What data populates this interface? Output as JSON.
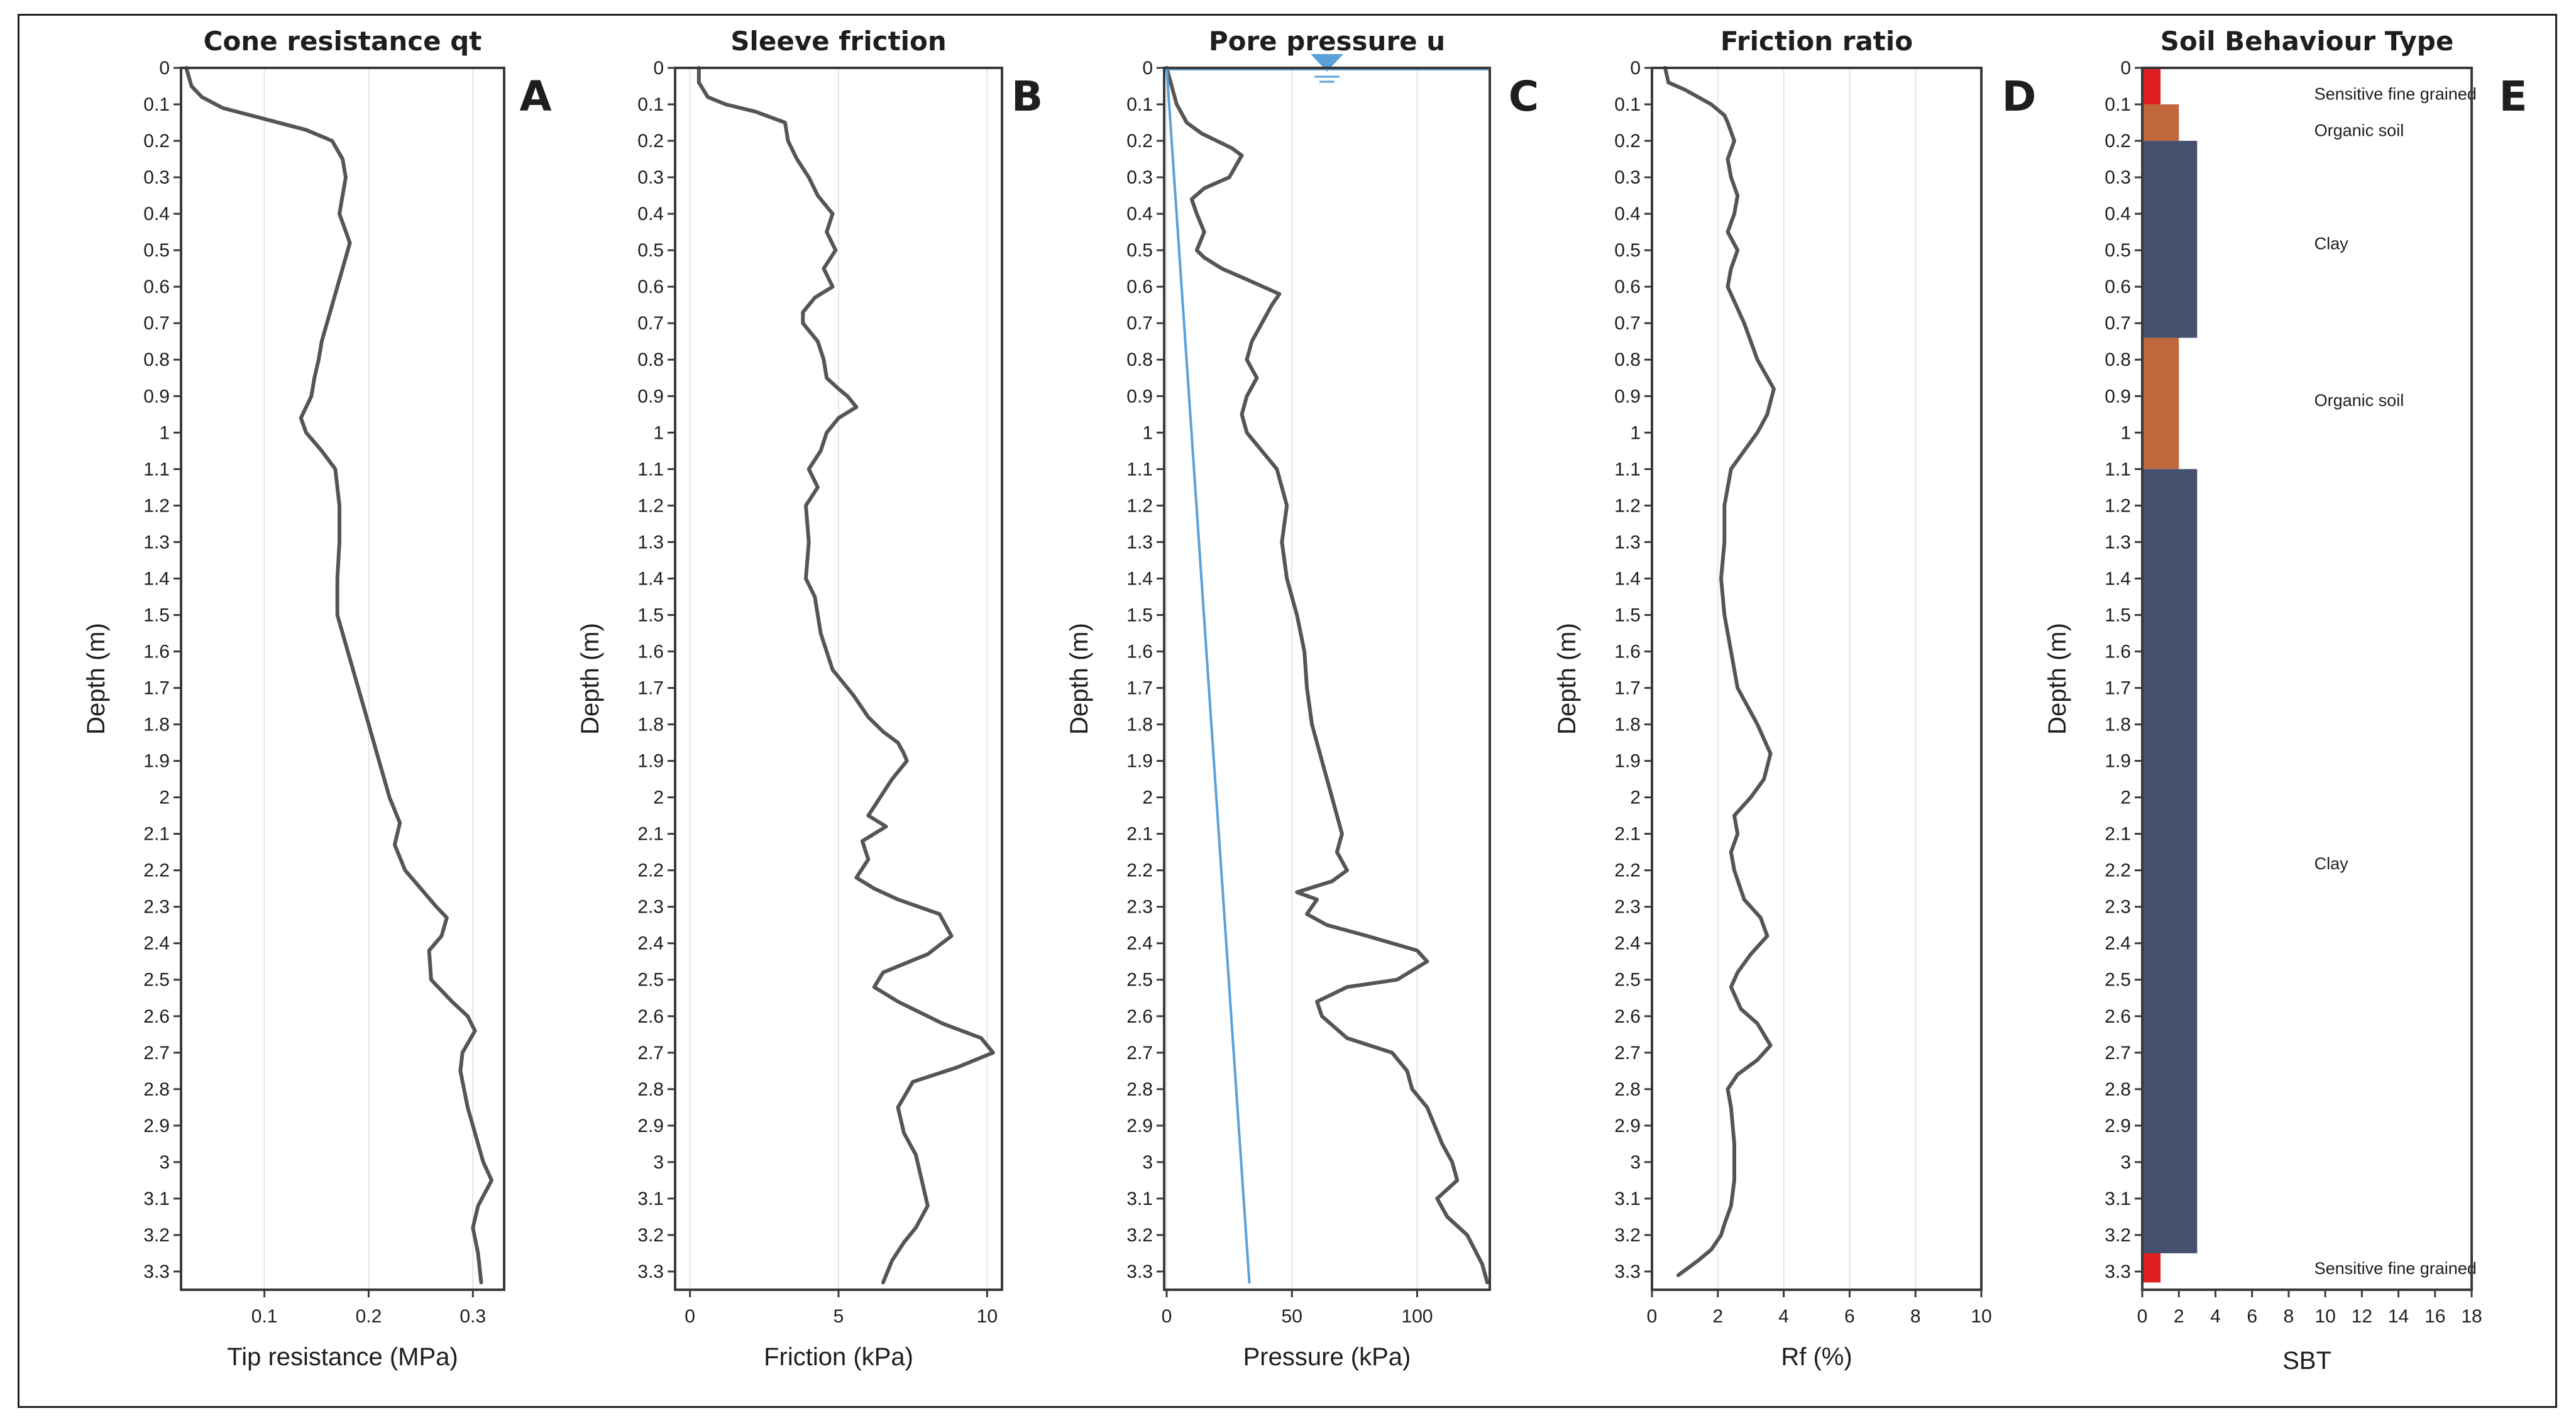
{
  "chart_data": [
    {
      "id": "A",
      "type": "line",
      "title": "Cone resistance qt",
      "xlabel": "Tip resistance (MPa)",
      "ylabel": "Depth (m)",
      "xlim": [
        0.02,
        0.33
      ],
      "ylim": [
        0,
        3.35
      ],
      "xticks": [
        0.1,
        0.2,
        0.3
      ],
      "xtick_labels": [
        "0.1",
        "0.2",
        "0.3"
      ],
      "yticks": [
        0,
        0.1,
        0.2,
        0.3,
        0.4,
        0.5,
        0.6,
        0.7,
        0.8,
        0.9,
        1,
        1.1,
        1.2,
        1.3,
        1.4,
        1.5,
        1.6,
        1.7,
        1.8,
        1.9,
        2,
        2.1,
        2.2,
        2.3,
        2.4,
        2.5,
        2.6,
        2.7,
        2.8,
        2.9,
        3,
        3.1,
        3.2,
        3.3
      ],
      "ytick_labels": [
        "0",
        "0.1",
        "0.2",
        "0.3",
        "0.4",
        "0.5",
        "0.6",
        "0.7",
        "0.8",
        "0.9",
        "1",
        "1.1",
        "1.2",
        "1.3",
        "1.4",
        "1.5",
        "1.6",
        "1.7",
        "1.8",
        "1.9",
        "2",
        "2.1",
        "2.2",
        "2.3",
        "2.4",
        "2.5",
        "2.6",
        "2.7",
        "2.8",
        "2.9",
        "3",
        "3.1",
        "3.2",
        "3.3"
      ],
      "grid": true,
      "series": [
        {
          "name": "qt",
          "color": "#555555",
          "x": [
            0.025,
            0.03,
            0.04,
            0.06,
            0.1,
            0.14,
            0.165,
            0.175,
            0.178,
            0.172,
            0.182,
            0.175,
            0.17,
            0.165,
            0.16,
            0.155,
            0.152,
            0.148,
            0.145,
            0.14,
            0.135,
            0.14,
            0.155,
            0.168,
            0.172,
            0.172,
            0.17,
            0.17,
            0.17,
            0.175,
            0.18,
            0.19,
            0.2,
            0.21,
            0.22,
            0.23,
            0.225,
            0.235,
            0.25,
            0.265,
            0.275,
            0.27,
            0.258,
            0.26,
            0.28,
            0.295,
            0.302,
            0.29,
            0.288,
            0.295,
            0.3,
            0.305,
            0.31,
            0.318,
            0.305,
            0.3,
            0.305,
            0.308
          ],
          "y": [
            0,
            0.05,
            0.08,
            0.11,
            0.14,
            0.17,
            0.2,
            0.25,
            0.3,
            0.4,
            0.48,
            0.55,
            0.6,
            0.65,
            0.7,
            0.75,
            0.8,
            0.85,
            0.9,
            0.93,
            0.96,
            1.0,
            1.05,
            1.1,
            1.2,
            1.3,
            1.4,
            1.45,
            1.5,
            1.55,
            1.6,
            1.7,
            1.8,
            1.9,
            2.0,
            2.07,
            2.13,
            2.2,
            2.25,
            2.3,
            2.33,
            2.38,
            2.42,
            2.5,
            2.56,
            2.6,
            2.64,
            2.7,
            2.75,
            2.85,
            2.9,
            2.95,
            3.0,
            3.05,
            3.12,
            3.18,
            3.25,
            3.33
          ]
        }
      ]
    },
    {
      "id": "B",
      "type": "line",
      "title": "Sleeve friction",
      "xlabel": "Friction (kPa)",
      "ylabel": "Depth (m)",
      "xlim": [
        -0.5,
        10.5
      ],
      "ylim": [
        0,
        3.35
      ],
      "xticks": [
        0,
        5,
        10
      ],
      "xtick_labels": [
        "0",
        "5",
        "10"
      ],
      "yticks": [
        0,
        0.1,
        0.2,
        0.3,
        0.4,
        0.5,
        0.6,
        0.7,
        0.8,
        0.9,
        1,
        1.1,
        1.2,
        1.3,
        1.4,
        1.5,
        1.6,
        1.7,
        1.8,
        1.9,
        2,
        2.1,
        2.2,
        2.3,
        2.4,
        2.5,
        2.6,
        2.7,
        2.8,
        2.9,
        3,
        3.1,
        3.2,
        3.3
      ],
      "ytick_labels": [
        "0",
        "0.1",
        "0.2",
        "0.3",
        "0.4",
        "0.5",
        "0.6",
        "0.7",
        "0.8",
        "0.9",
        "1",
        "1.1",
        "1.2",
        "1.3",
        "1.4",
        "1.5",
        "1.6",
        "1.7",
        "1.8",
        "1.9",
        "2",
        "2.1",
        "2.2",
        "2.3",
        "2.4",
        "2.5",
        "2.6",
        "2.7",
        "2.8",
        "2.9",
        "3",
        "3.1",
        "3.2",
        "3.3"
      ],
      "grid": true,
      "series": [
        {
          "name": "fs",
          "color": "#555555",
          "x": [
            0.3,
            0.3,
            0.6,
            1.2,
            2.2,
            3.2,
            3.3,
            3.6,
            4.0,
            4.3,
            4.8,
            4.6,
            4.9,
            4.5,
            4.8,
            4.2,
            3.8,
            3.8,
            4.3,
            4.5,
            4.6,
            5.0,
            5.3,
            5.6,
            5.0,
            4.6,
            4.4,
            4.0,
            4.3,
            3.9,
            4.0,
            3.9,
            4.2,
            4.4,
            4.8,
            5.5,
            6.0,
            6.5,
            7.0,
            7.2,
            7.3,
            6.8,
            6.0,
            6.6,
            5.8,
            6.0,
            5.6,
            6.2,
            7.0,
            8.4,
            8.8,
            8.0,
            6.5,
            6.2,
            7.0,
            8.5,
            9.8,
            10.2,
            9.0,
            7.5,
            7.0,
            7.2,
            7.6,
            7.8,
            8.0,
            7.6,
            7.2,
            6.8,
            6.5
          ],
          "y": [
            0,
            0.04,
            0.08,
            0.1,
            0.12,
            0.15,
            0.2,
            0.25,
            0.3,
            0.35,
            0.4,
            0.45,
            0.5,
            0.55,
            0.6,
            0.63,
            0.67,
            0.7,
            0.75,
            0.8,
            0.85,
            0.88,
            0.9,
            0.93,
            0.96,
            1.0,
            1.05,
            1.1,
            1.15,
            1.2,
            1.3,
            1.4,
            1.45,
            1.55,
            1.65,
            1.72,
            1.78,
            1.82,
            1.85,
            1.88,
            1.9,
            1.95,
            2.05,
            2.08,
            2.12,
            2.17,
            2.22,
            2.25,
            2.28,
            2.32,
            2.38,
            2.43,
            2.48,
            2.52,
            2.56,
            2.62,
            2.66,
            2.7,
            2.74,
            2.78,
            2.85,
            2.92,
            2.98,
            3.05,
            3.12,
            3.18,
            3.22,
            3.27,
            3.33
          ]
        }
      ]
    },
    {
      "id": "C",
      "type": "line",
      "title": "Pore pressure u",
      "xlabel": "Pressure (kPa)",
      "ylabel": "Depth (m)",
      "xlim": [
        -1,
        129
      ],
      "ylim": [
        0,
        3.35
      ],
      "xticks": [
        0,
        50,
        100
      ],
      "xtick_labels": [
        "0",
        "50",
        "100"
      ],
      "yticks": [
        0,
        0.1,
        0.2,
        0.3,
        0.4,
        0.5,
        0.6,
        0.7,
        0.8,
        0.9,
        1,
        1.1,
        1.2,
        1.3,
        1.4,
        1.5,
        1.6,
        1.7,
        1.8,
        1.9,
        2,
        2.1,
        2.2,
        2.3,
        2.4,
        2.5,
        2.6,
        2.7,
        2.8,
        2.9,
        3,
        3.1,
        3.2,
        3.3
      ],
      "ytick_labels": [
        "0",
        "0.1",
        "0.2",
        "0.3",
        "0.4",
        "0.5",
        "0.6",
        "0.7",
        "0.8",
        "0.9",
        "1",
        "1.1",
        "1.2",
        "1.3",
        "1.4",
        "1.5",
        "1.6",
        "1.7",
        "1.8",
        "1.9",
        "2",
        "2.1",
        "2.2",
        "2.3",
        "2.4",
        "2.5",
        "2.6",
        "2.7",
        "2.8",
        "2.9",
        "3",
        "3.1",
        "3.2",
        "3.3"
      ],
      "grid": true,
      "water_table": {
        "x": 64,
        "y": 0
      },
      "series": [
        {
          "name": "u2",
          "color": "#555555",
          "x": [
            0,
            2,
            4,
            8,
            14,
            20,
            26,
            30,
            25,
            15,
            10,
            12,
            15,
            12,
            15,
            22,
            32,
            45,
            42,
            38,
            34,
            32,
            36,
            32,
            30,
            32,
            38,
            44,
            46,
            48,
            46,
            48,
            52,
            55,
            56,
            58,
            62,
            66,
            68,
            70,
            68,
            72,
            66,
            52,
            60,
            56,
            64,
            80,
            100,
            104,
            92,
            72,
            60,
            62,
            72,
            90,
            96,
            98,
            104,
            110,
            114,
            116,
            108,
            112,
            120,
            126,
            128
          ],
          "y": [
            0,
            0.05,
            0.1,
            0.15,
            0.18,
            0.2,
            0.22,
            0.24,
            0.3,
            0.33,
            0.36,
            0.4,
            0.45,
            0.5,
            0.52,
            0.55,
            0.58,
            0.62,
            0.65,
            0.7,
            0.75,
            0.8,
            0.85,
            0.9,
            0.95,
            1.0,
            1.05,
            1.1,
            1.15,
            1.2,
            1.3,
            1.4,
            1.5,
            1.6,
            1.7,
            1.8,
            1.9,
            2.0,
            2.05,
            2.1,
            2.15,
            2.2,
            2.23,
            2.26,
            2.28,
            2.32,
            2.35,
            2.38,
            2.42,
            2.45,
            2.5,
            2.52,
            2.56,
            2.6,
            2.66,
            2.7,
            2.75,
            2.8,
            2.85,
            2.95,
            3.0,
            3.05,
            3.1,
            3.15,
            3.2,
            3.28,
            3.33
          ]
        },
        {
          "name": "hydrostatic u0",
          "color": "#5aa1d8",
          "x": [
            0,
            33
          ],
          "y": [
            0,
            3.33
          ]
        }
      ]
    },
    {
      "id": "D",
      "type": "line",
      "title": "Friction ratio",
      "xlabel": "Rf (%)",
      "ylabel": "Depth (m)",
      "xlim": [
        0,
        10
      ],
      "ylim": [
        0,
        3.35
      ],
      "xticks": [
        0,
        2,
        4,
        6,
        8,
        10
      ],
      "xtick_labels": [
        "0",
        "2",
        "4",
        "6",
        "8",
        "10"
      ],
      "yticks": [
        0,
        0.1,
        0.2,
        0.3,
        0.4,
        0.5,
        0.6,
        0.7,
        0.8,
        0.9,
        1,
        1.1,
        1.2,
        1.3,
        1.4,
        1.5,
        1.6,
        1.7,
        1.8,
        1.9,
        2,
        2.1,
        2.2,
        2.3,
        2.4,
        2.5,
        2.6,
        2.7,
        2.8,
        2.9,
        3,
        3.1,
        3.2,
        3.3
      ],
      "ytick_labels": [
        "0",
        "0.1",
        "0.2",
        "0.3",
        "0.4",
        "0.5",
        "0.6",
        "0.7",
        "0.8",
        "0.9",
        "1",
        "1.1",
        "1.2",
        "1.3",
        "1.4",
        "1.5",
        "1.6",
        "1.7",
        "1.8",
        "1.9",
        "2",
        "2.1",
        "2.2",
        "2.3",
        "2.4",
        "2.5",
        "2.6",
        "2.7",
        "2.8",
        "2.9",
        "3",
        "3.1",
        "3.2",
        "3.3"
      ],
      "grid": true,
      "series": [
        {
          "name": "Rf",
          "color": "#555555",
          "x": [
            0.4,
            0.5,
            1.0,
            1.8,
            2.2,
            2.3,
            2.5,
            2.3,
            2.4,
            2.6,
            2.5,
            2.3,
            2.6,
            2.4,
            2.3,
            2.8,
            3.2,
            3.7,
            3.5,
            3.2,
            2.8,
            2.4,
            2.2,
            2.2,
            2.1,
            2.2,
            2.4,
            2.6,
            2.9,
            3.2,
            3.6,
            3.4,
            3.0,
            2.5,
            2.6,
            2.4,
            2.5,
            2.8,
            3.3,
            3.5,
            3.0,
            2.6,
            2.4,
            2.7,
            3.2,
            3.6,
            3.2,
            2.6,
            2.3,
            2.4,
            2.5,
            2.5,
            2.4,
            2.2,
            2.1,
            1.8,
            1.4,
            0.8
          ],
          "y": [
            0,
            0.04,
            0.06,
            0.1,
            0.13,
            0.15,
            0.2,
            0.25,
            0.3,
            0.35,
            0.4,
            0.45,
            0.5,
            0.55,
            0.6,
            0.7,
            0.8,
            0.88,
            0.95,
            1.0,
            1.05,
            1.1,
            1.2,
            1.3,
            1.4,
            1.5,
            1.6,
            1.7,
            1.75,
            1.8,
            1.88,
            1.95,
            2.0,
            2.05,
            2.1,
            2.15,
            2.2,
            2.28,
            2.33,
            2.38,
            2.43,
            2.48,
            2.52,
            2.58,
            2.62,
            2.68,
            2.72,
            2.76,
            2.8,
            2.85,
            2.95,
            3.05,
            3.12,
            3.17,
            3.2,
            3.24,
            3.27,
            3.31
          ]
        }
      ]
    },
    {
      "id": "E",
      "type": "bar",
      "orientation": "horizontal",
      "title": "Soil Behaviour Type",
      "xlabel": "SBT",
      "ylabel": "Depth (m)",
      "xlim": [
        0,
        18
      ],
      "ylim": [
        0,
        3.35
      ],
      "xticks": [
        0,
        2,
        4,
        6,
        8,
        10,
        12,
        14,
        16,
        18
      ],
      "xtick_labels": [
        "0",
        "2",
        "4",
        "6",
        "8",
        "10",
        "12",
        "14",
        "16",
        "18"
      ],
      "yticks": [
        0,
        0.1,
        0.2,
        0.3,
        0.4,
        0.5,
        0.6,
        0.7,
        0.8,
        0.9,
        1,
        1.1,
        1.2,
        1.3,
        1.4,
        1.5,
        1.6,
        1.7,
        1.8,
        1.9,
        2,
        2.1,
        2.2,
        2.3,
        2.4,
        2.5,
        2.6,
        2.7,
        2.8,
        2.9,
        3,
        3.1,
        3.2,
        3.3
      ],
      "ytick_labels": [
        "0",
        "0.1",
        "0.2",
        "0.3",
        "0.4",
        "0.5",
        "0.6",
        "0.7",
        "0.8",
        "0.9",
        "1",
        "1.1",
        "1.2",
        "1.3",
        "1.4",
        "1.5",
        "1.6",
        "1.7",
        "1.8",
        "1.9",
        "2",
        "2.1",
        "2.2",
        "2.3",
        "2.4",
        "2.5",
        "2.6",
        "2.7",
        "2.8",
        "2.9",
        "3",
        "3.1",
        "3.2",
        "3.3"
      ],
      "grid": false,
      "layers": [
        {
          "top": 0.0,
          "bottom": 0.1,
          "sbt": 1,
          "label": "Sensitive fine grained",
          "label_depth": 0.07,
          "color": "#e02020"
        },
        {
          "top": 0.1,
          "bottom": 0.2,
          "sbt": 2,
          "label": "Organic soil",
          "label_depth": 0.17,
          "color": "#c0673e"
        },
        {
          "top": 0.2,
          "bottom": 0.74,
          "sbt": 3,
          "label": "Clay",
          "label_depth": 0.48,
          "color": "#45506f"
        },
        {
          "top": 0.74,
          "bottom": 1.1,
          "sbt": 2,
          "label": "Organic soil",
          "label_depth": 0.91,
          "color": "#c0673e"
        },
        {
          "top": 1.1,
          "bottom": 3.25,
          "sbt": 3,
          "label": "Clay",
          "label_depth": 2.18,
          "color": "#45506f"
        },
        {
          "top": 3.25,
          "bottom": 3.33,
          "sbt": 1,
          "label": "Sensitive fine grained",
          "label_depth": 3.29,
          "color": "#e02020"
        }
      ]
    }
  ]
}
